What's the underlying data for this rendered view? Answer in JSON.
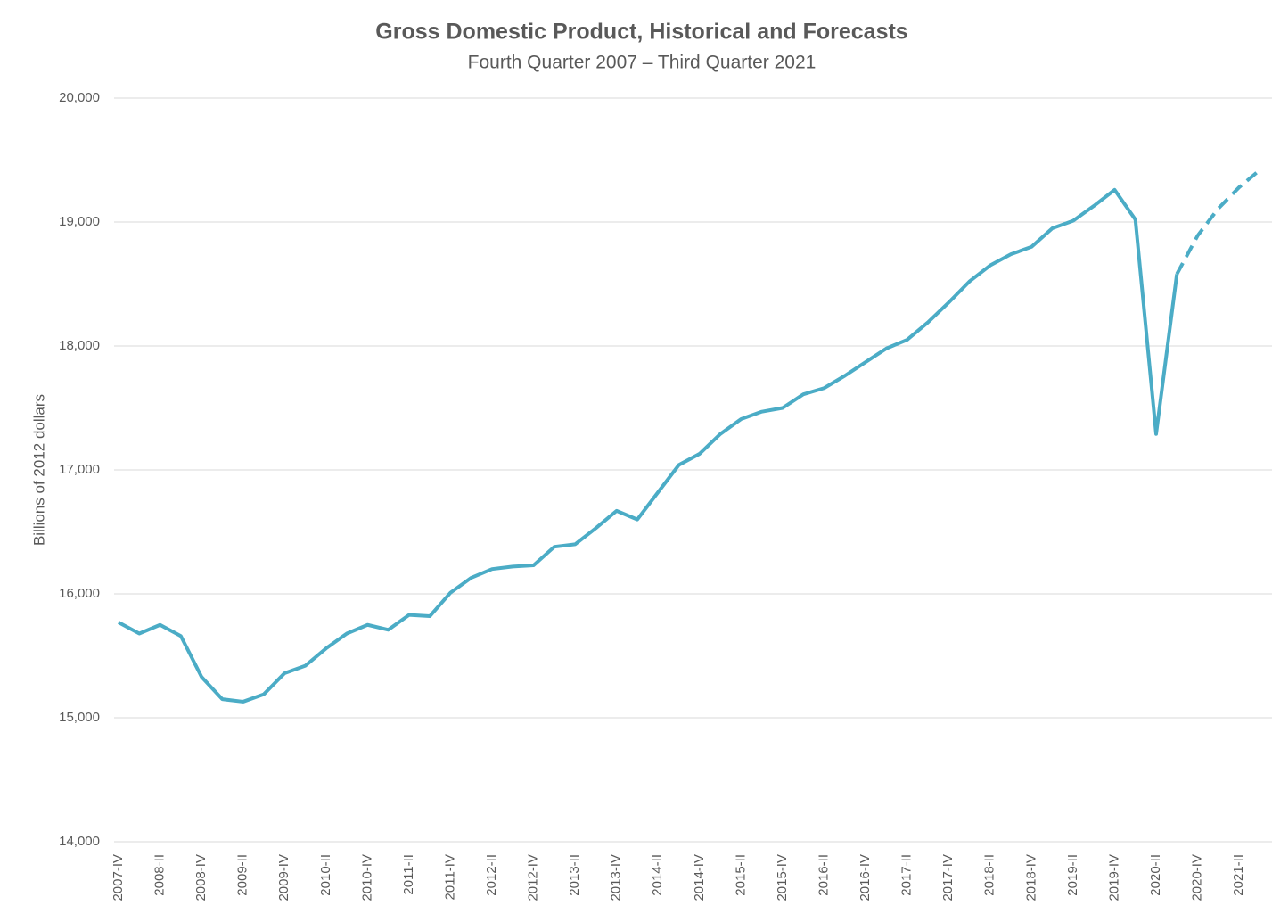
{
  "chart_data": {
    "type": "line",
    "title": "Gross Domestic Product, Historical and Forecasts",
    "subtitle": "Fourth Quarter 2007 – Third Quarter 2021",
    "ylabel": "Billions of 2012 dollars",
    "categories": [
      "2007-IV",
      null,
      "2008-II",
      null,
      "2008-IV",
      null,
      "2009-II",
      null,
      "2009-IV",
      null,
      "2010-II",
      null,
      "2010-IV",
      null,
      "2011-II",
      null,
      "2011-IV",
      null,
      "2012-II",
      null,
      "2012-IV",
      null,
      "2013-II",
      null,
      "2013-IV",
      null,
      "2014-II",
      null,
      "2014-IV",
      null,
      "2015-II",
      null,
      "2015-IV",
      null,
      "2016-II",
      null,
      "2016-IV",
      null,
      "2017-II",
      null,
      "2017-IV",
      null,
      "2018-II",
      null,
      "2018-IV",
      null,
      "2019-II",
      null,
      "2019-IV",
      null,
      "2020-II",
      null,
      "2020-IV",
      null,
      "2021-II",
      null
    ],
    "series": [
      {
        "color": "#4bacc6",
        "dashed": false,
        "values": [
          15770,
          15680,
          15750,
          15660,
          15330,
          15150,
          15130,
          15190,
          15360,
          15420,
          15560,
          15680,
          15750,
          15710,
          15830,
          15820,
          16010,
          16130,
          16200,
          16220,
          16230,
          16380,
          16400,
          16530,
          16670,
          16600,
          16820,
          17040,
          17130,
          17290,
          17410,
          17470,
          17500,
          17610,
          17660,
          17760,
          17870,
          17980,
          18050,
          18190,
          18350,
          18520,
          18650,
          18740,
          18800,
          18950,
          19010,
          19130,
          19260,
          19020,
          17290,
          18580,
          null,
          null,
          null,
          null
        ]
      },
      {
        "color": "#4bacc6",
        "dashed": true,
        "values": [
          null,
          null,
          null,
          null,
          null,
          null,
          null,
          null,
          null,
          null,
          null,
          null,
          null,
          null,
          null,
          null,
          null,
          null,
          null,
          null,
          null,
          null,
          null,
          null,
          null,
          null,
          null,
          null,
          null,
          null,
          null,
          null,
          null,
          null,
          null,
          null,
          null,
          null,
          null,
          null,
          null,
          null,
          null,
          null,
          null,
          null,
          null,
          null,
          null,
          null,
          null,
          18580,
          18890,
          19110,
          19280,
          19420
        ]
      }
    ],
    "ylim": [
      14000,
      20000
    ],
    "yticks": [
      {
        "value": 14000,
        "label": "14,000"
      },
      {
        "value": 15000,
        "label": "15,000"
      },
      {
        "value": 16000,
        "label": "16,000"
      },
      {
        "value": 17000,
        "label": "17,000"
      },
      {
        "value": 18000,
        "label": "18,000"
      },
      {
        "value": 19000,
        "label": "19,000"
      },
      {
        "value": 20000,
        "label": "20,000"
      }
    ],
    "grid": true
  }
}
